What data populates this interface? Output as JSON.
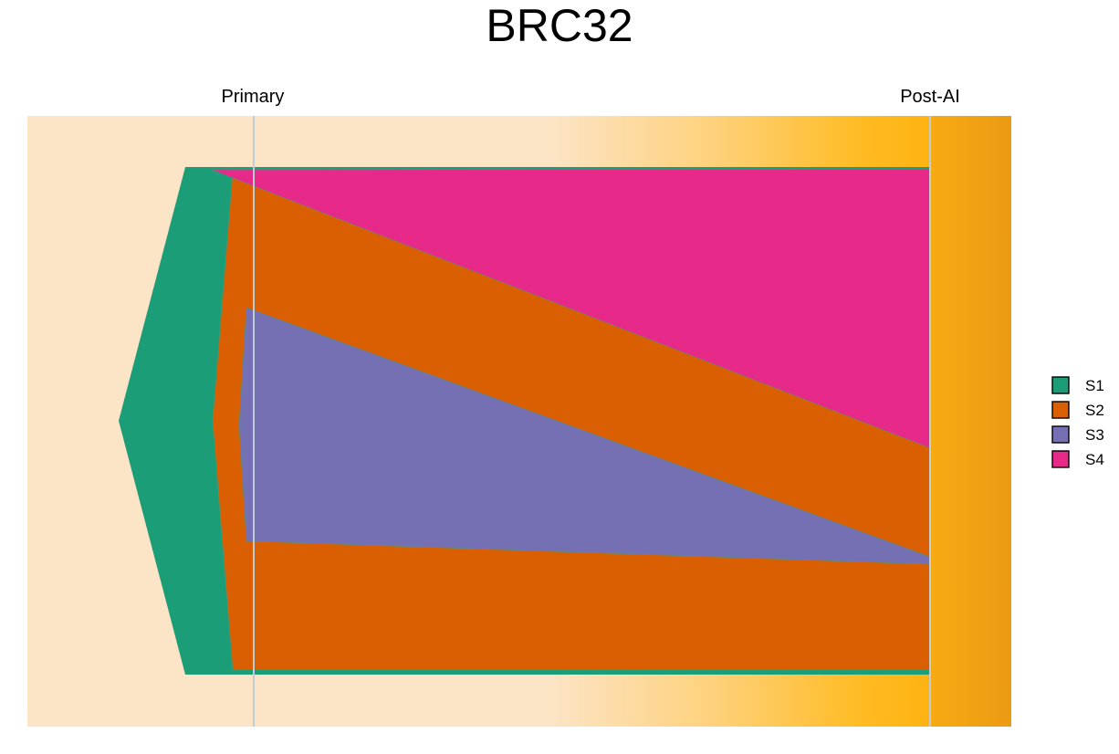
{
  "chart_data": {
    "type": "fish-plot",
    "title": "BRC32",
    "timepoints": [
      {
        "label": "Primary",
        "x": 0
      },
      {
        "label": "Post-AI",
        "x": 1
      }
    ],
    "clones": [
      {
        "name": "S1",
        "parent": null,
        "color": "#1B9E77",
        "fractions": [
          100,
          100
        ]
      },
      {
        "name": "S2",
        "parent": "S1",
        "color": "#D95F02",
        "fractions": [
          98,
          98
        ]
      },
      {
        "name": "S3",
        "parent": "S2",
        "color": "#7570B3",
        "fractions": [
          46,
          1
        ]
      },
      {
        "name": "S4",
        "parent": "S2",
        "color": "#E7298A",
        "fractions": [
          1,
          55
        ]
      }
    ],
    "legend": {
      "position": "right",
      "entries": [
        "S1",
        "S2",
        "S3",
        "S4"
      ]
    },
    "background": {
      "colors": [
        "#FCE4C6",
        "#FEC14A",
        "#FFB90F",
        "#EC9B13"
      ],
      "description": "gradient"
    }
  }
}
